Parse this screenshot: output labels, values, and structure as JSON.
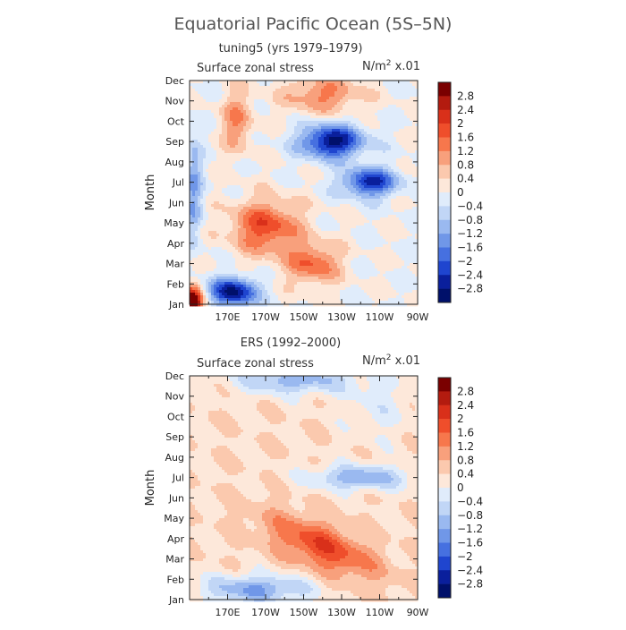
{
  "figure": {
    "title": "Equatorial Pacific Ocean (5S–5N)"
  },
  "chart_data": [
    {
      "type": "heatmap",
      "subtitle": "tuning5 (yrs 1979–1979)",
      "variable": "Surface zonal stress",
      "units_prefix": "N/m",
      "units_exp": "2",
      "units_suffix": " x.01",
      "ylabel": "Month",
      "y_ticks": [
        "Jan",
        "Feb",
        "Mar",
        "Apr",
        "May",
        "Jun",
        "Jul",
        "Aug",
        "Sep",
        "Oct",
        "Nov",
        "Dec"
      ],
      "x_ticks": [
        "170E",
        "170W",
        "150W",
        "130W",
        "110W",
        "90W"
      ],
      "x_range_deg_east": [
        150,
        270
      ],
      "colorbar_levels": [
        "2.8",
        "2.4",
        "2",
        "1.6",
        "1.2",
        "0.8",
        "0.4",
        "0",
        "−0.4",
        "−0.8",
        "−1.2",
        "−1.6",
        "−2",
        "−2.4",
        "−2.8"
      ],
      "features": [
        {
          "month": 0.1,
          "lon": 151,
          "value": 3.0,
          "description": "strong westerly maximum at far west, Jan"
        },
        {
          "month": 0.6,
          "lon": 173,
          "value": -2.8,
          "description": "easterly minimum near 170E, Jan-Feb"
        },
        {
          "month": 3.8,
          "lon": 190,
          "value": 1.8,
          "description": "westerly maximum near 170W, May"
        },
        {
          "month": 2.0,
          "lon": 215,
          "value": 1.7,
          "description": "westerly maximum near 150W, Mar"
        },
        {
          "month": 8.0,
          "lon": 225,
          "value": -2.8,
          "description": "easterly minimum near 130W, Sep"
        },
        {
          "month": 6.0,
          "lon": 245,
          "value": -2.6,
          "description": "easterly minimum near 115W, Jul"
        },
        {
          "month": 10.3,
          "lon": 220,
          "value": 1.4,
          "description": "westerly maximum near 140W, Nov"
        }
      ]
    },
    {
      "type": "heatmap",
      "subtitle": "ERS (1992–2000)",
      "variable": "Surface zonal stress",
      "units_prefix": "N/m",
      "units_exp": "2",
      "units_suffix": " x.01",
      "ylabel": "Month",
      "y_ticks": [
        "Jan",
        "Feb",
        "Mar",
        "Apr",
        "May",
        "Jun",
        "Jul",
        "Aug",
        "Sep",
        "Oct",
        "Nov",
        "Dec"
      ],
      "x_ticks": [
        "170E",
        "170W",
        "150W",
        "130W",
        "110W",
        "90W"
      ],
      "x_range_deg_east": [
        150,
        270
      ],
      "colorbar_levels": [
        "2.8",
        "2.4",
        "2",
        "1.6",
        "1.2",
        "0.8",
        "0.4",
        "0",
        "−0.4",
        "−0.8",
        "−1.2",
        "−1.6",
        "−2",
        "−2.4",
        "−2.8"
      ],
      "features": [
        {
          "month": 2.2,
          "lon": 230,
          "value": 1.7,
          "description": "westerly maximum near 130W, Mar-Apr"
        },
        {
          "month": 0.5,
          "lon": 185,
          "value": -1.4,
          "description": "easterly minimum, Jan-Feb"
        },
        {
          "month": 6.0,
          "lon": 240,
          "value": -1.3,
          "description": "easterly band near 120W, Jul"
        },
        {
          "month": 10.8,
          "lon": 205,
          "value": -1.2,
          "description": "easterly minimum near 150W, Dec"
        },
        {
          "month": 9.5,
          "lon": 175,
          "value": 0.6,
          "description": "weak westerlies in west, Sep-Dec"
        }
      ]
    }
  ],
  "colors": {
    "colorbar": [
      "#7a0000",
      "#b31b0f",
      "#d9301a",
      "#ef4e2b",
      "#f7774c",
      "#f8a07c",
      "#fbc9ae",
      "#fde8da",
      "#e0ecfb",
      "#c1d6f6",
      "#9ab9f0",
      "#7097e8",
      "#4670e0",
      "#1f45cf",
      "#0a1f9c",
      "#00106a"
    ]
  }
}
